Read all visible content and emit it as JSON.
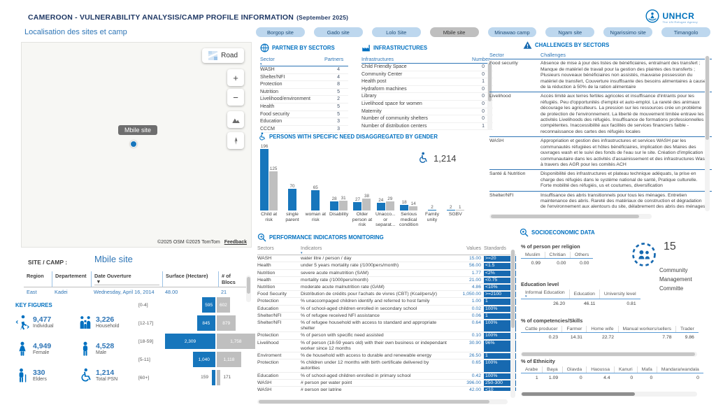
{
  "colors": {
    "accent": "#0070C0",
    "blue_text": "#2E75B6",
    "navy": "#1F3864",
    "bar_blue": "#1776BC",
    "bar_gray": "#BFBFBF",
    "chip_blue": "#1769B0",
    "tab_bg": "#BDD7EE",
    "tab_active": "#BFBFBF",
    "unhcr_blue": "#0072BC"
  },
  "header": {
    "title": "CAMEROON - VULNERABILITY ANALYSIS/CAMP PROFILE INFORMATION",
    "period": "(September 2025)",
    "subtitle": "Localisation des sites et camp",
    "logo": "UNHCR",
    "logo_tagline": "The UN Refugee Agency"
  },
  "tabs": {
    "items": [
      "Borgop site",
      "Gado site",
      "Lolo Site",
      "Mbile site",
      "Minawao camp",
      "Ngam site",
      "Ngarissimo site",
      "Timangolo"
    ],
    "active": "Mbile site"
  },
  "map": {
    "style_button": "Road",
    "marker_label": "Mbile site",
    "zoom_in": "+",
    "zoom_out": "−",
    "attribution": "©2025 OSM ©2025 TomTom",
    "feedback": "Feedback"
  },
  "partners": {
    "title": "PARTNER BY SECTORS",
    "columns": [
      "Sector",
      "Partners"
    ],
    "rows": [
      [
        "WASH",
        "4"
      ],
      [
        "Shelter/NFI",
        "4"
      ],
      [
        "Protection",
        "8"
      ],
      [
        "Nutrition",
        "5"
      ],
      [
        "Livelihood/environment",
        "2"
      ],
      [
        "Health",
        "5"
      ],
      [
        "Food security",
        "5"
      ],
      [
        "Education",
        "3"
      ],
      [
        "CCCM",
        "3"
      ]
    ]
  },
  "infrastructures": {
    "title": "INFRASTRUCTURES",
    "columns": [
      "Infrastructures",
      "Number"
    ],
    "rows": [
      [
        "Child Friendly Space",
        "0"
      ],
      [
        "Community Center",
        "0"
      ],
      [
        "Health post",
        "1"
      ],
      [
        "Hydraform machines",
        "0"
      ],
      [
        "Library",
        "0"
      ],
      [
        "Livelihood space for women",
        "0"
      ],
      [
        "Maternity",
        "0"
      ],
      [
        "Number of community shelters",
        "0"
      ],
      [
        "Number of distribution centers",
        "1"
      ]
    ]
  },
  "psn": {
    "title": "PERSONS WITH SPECIFIC NEED DISAGGREGATED BY GENDER",
    "total": "1,214"
  },
  "chart_data": [
    {
      "type": "bar",
      "title": "PERSONS WITH SPECIFIC NEED DISAGGREGATED BY GENDER",
      "categories": [
        "Child at risk",
        "single parent",
        "woman at risk",
        "Disability",
        "Older person at risk",
        "Unacco... or separat...",
        "Serious medical condition",
        "Family unity",
        "SGBV"
      ],
      "series": [
        {
          "name": "blue",
          "values": [
            196,
            70,
            65,
            28,
            27,
            24,
            18,
            2,
            2
          ]
        },
        {
          "name": "gray",
          "values": [
            125,
            null,
            null,
            31,
            38,
            29,
            14,
            null,
            1
          ]
        }
      ],
      "total_label": "1,214",
      "legend_position": "none",
      "grid": false
    },
    {
      "type": "bar",
      "title": "Population by age group",
      "categories": [
        "[0-4]",
        "[12-17]",
        "[18-59]",
        "[5-11]",
        "[60+]"
      ],
      "series": [
        {
          "name": "left-blue",
          "values": [
            595,
            845,
            2309,
            1040,
            159
          ]
        },
        {
          "name": "right-gray",
          "values": [
            602,
            879,
            1758,
            1118,
            171
          ]
        }
      ],
      "orientation": "horizontal-pyramid",
      "grid": false
    }
  ],
  "performance": {
    "title": "PERFORMANCE INDICATORS MONITORING",
    "columns": [
      "Sectors",
      "Indicators",
      "Values",
      "Standards"
    ],
    "rows": [
      [
        "WASH",
        "water litre / person / day",
        "15.00",
        ">=20"
      ],
      [
        "Health",
        "under 5 years mortality rate (/1000pers/month)",
        "56.00",
        "<1.5"
      ],
      [
        "Nutrition",
        "severe acute malnutrition (SAM)",
        "1.77",
        "<2%"
      ],
      [
        "Health",
        "mortality rate (/1000pers/month)",
        "21.00",
        "<0.75"
      ],
      [
        "Nutrition",
        "moderate acute malnutrition rate (GAM)",
        "4.86",
        "<10%"
      ],
      [
        "Food Security",
        "Distribution de crédits pour l'achats de vivres (CBT) (Kcal/pers/jr)",
        "1,050.00",
        ">=2100"
      ],
      [
        "Protection",
        "% unaccompaged children identify and referred to host family",
        "1.00",
        "1"
      ],
      [
        "Education",
        "% of school-aged children enrolled in secondary school",
        "0.02",
        "100%"
      ],
      [
        "Shelter/NFI",
        "% of refugee received NFI assistance",
        "0.06",
        "1"
      ],
      [
        "Shelter/NFI",
        "% of refugee household with access to standard and appropriate shelter",
        "0.64",
        "100%"
      ],
      [
        "Protection",
        "% of person with specific need assisted",
        "0.10",
        "100%"
      ],
      [
        "Livelihood",
        "% of person (18-59 years old) with their own business or independant worker since 12 months",
        "30.90",
        "96%"
      ],
      [
        "Enviroment",
        "% de household with access to durable and renewable energy",
        "26.50",
        "1"
      ],
      [
        "Protection",
        "% children under 12 months with birth certificate delivered by autorities",
        "0.65",
        "100%"
      ],
      [
        "Education",
        "% of school-aged children enrolled in primary school",
        "0.42",
        "100%"
      ],
      [
        "WASH",
        "# person per water point",
        "396.00",
        "250-300"
      ],
      [
        "WASH",
        "# person per latrine",
        "42.00",
        "<10"
      ]
    ]
  },
  "challenges": {
    "title": "CHALLENGES BY SECTORS",
    "columns": [
      "Sector",
      "Challenges"
    ],
    "rows": [
      [
        "Food security",
        "Absence de mise à jour des listes de bénéficiaires, entraînant des transfert ; Manque de matériel de travail pour la gestion des plaintes des transferts ; Plusieurs nouveaux bénéficiaires non assistés, mauvaise possession du matériel de transfert, Couverture insuffisante des besoins alimentaires à cause de la réduction à 50% de la ration alimentaire"
      ],
      [
        "Livelihood",
        "Accès limité aux terres fertiles agricoles et insuffisance d'intrants pour les réfugiés. Peu d'opportunités d'emploi et auto-emploi. La rareté des animaux décourage les agriculteurs. La pression sur les ressources crée un problème de protection de l'environnement. La liberté de mouvement limitée entrave les activités Livelihoods des réfugiés. Insuffisance de formations professionnelles compétentes. Inaccessibilité aux facilités de services financiers faible - reconnaissance des cartes des réfugiés locales"
      ],
      [
        "WASH",
        "Appropriation et gestion des infrastructures et services WASH par les communautés réfugiées et hôtes bénéficiaires, implication des Maires des ouvrages wash et le suivi des fonds de l'eau sur le site. Création d'implication communautaire dans les activités d'assainissement et des infrastructures Wash à travers des AGR pour les comités ACH"
      ],
      [
        "Santé & Nutrition",
        "Disponibilité des infrastructures et plateau technique adéquats, la prise en charge des réfugiés dans le système national de santé, Pratique culturelle. Forte mobilité des réfugiés, us et coutumes, diversification"
      ],
      [
        "Shelter/NFI",
        "Insuffisance des abris transitionnels pour tous les ménages. Entretien maintenance des abris. Rareté des matériaux de construction et dégradation de l'environnement aux alentours du site, délabrement des abris des ménages"
      ]
    ]
  },
  "socio": {
    "title": "SOCIOECONOMIC DATA",
    "religion": {
      "label": "% of person per religion",
      "headers": [
        "Muslim",
        "Chritian",
        "Others"
      ],
      "values": [
        "0.99",
        "0.00",
        "0.00"
      ]
    },
    "committee": {
      "count": "15",
      "lines": [
        "Community",
        "Management",
        "Committe"
      ]
    },
    "education": {
      "label": "Education level",
      "headers": [
        "Informal Education",
        "Education",
        "University level"
      ],
      "values": [
        "26.20",
        "46.11",
        "0.81"
      ]
    },
    "skills": {
      "label": "% of competencies/Skills",
      "headers": [
        "Cattle producer",
        "Farmer",
        "Home wife",
        "Manual workers/sellers",
        "Trader"
      ],
      "values": [
        "0.23",
        "14.31",
        "22.72",
        "7.78",
        "9.86"
      ]
    },
    "ethnicity": {
      "label": "% of Ethnicity",
      "headers": [
        "Arabe",
        "Baya",
        "Glavda",
        "Haoussa",
        "Kanuri",
        "Mafa",
        "Mandara/wandala"
      ],
      "values": [
        "1",
        "1.09",
        "0",
        "4.4",
        "0",
        "0",
        "0"
      ]
    }
  },
  "site": {
    "label": "SITE / CAMP :",
    "name": "Mbile site",
    "columns": [
      "Region",
      "Departement",
      "Date Ouverture",
      "Surface (Hectare)",
      "# of Blocs"
    ],
    "values": [
      "East",
      "Kadei",
      "Wednesday, April 16, 2014",
      "48.00",
      "21"
    ]
  },
  "key_figures": {
    "title": "KEY FIGURES",
    "items": [
      {
        "icon": "individual",
        "value": "9,477",
        "label": "Individual"
      },
      {
        "icon": "household",
        "value": "3,226",
        "label": "Household"
      },
      {
        "icon": "female",
        "value": "4,949",
        "label": "Female"
      },
      {
        "icon": "male",
        "value": "4,528",
        "label": "Male"
      },
      {
        "icon": "elders",
        "value": "330",
        "label": "Elders"
      },
      {
        "icon": "wheelchair",
        "value": "1,214",
        "label": "Total PSN"
      }
    ]
  }
}
